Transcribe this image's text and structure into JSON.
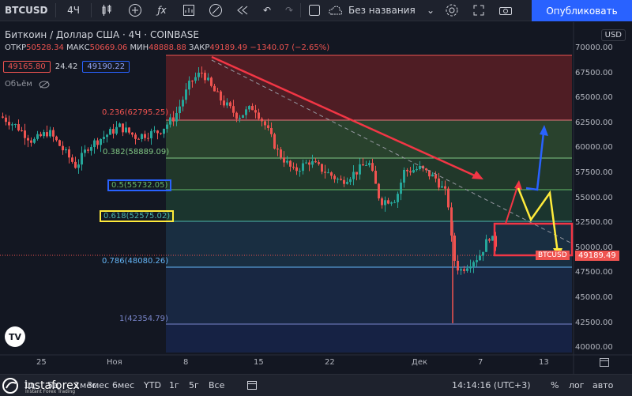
{
  "toolbar": {
    "symbol": "BTCUSD",
    "interval": "4Ч",
    "layout_name": "Без названия",
    "publish_label": "Опубликовать",
    "icons": [
      "candles-icon",
      "add-indicator-icon",
      "fx-icon",
      "templates-icon",
      "compare-icon",
      "replay-icon",
      "undo-icon",
      "redo-icon",
      "layout-icon",
      "cloud-icon",
      "settings-icon",
      "fullscreen-icon",
      "camera-icon"
    ]
  },
  "legend": {
    "title": "Биткоин / Доллар США · 4Ч · COINBASE",
    "open_label": "ОТКР",
    "open": "50528.34",
    "high_label": "МАКС",
    "high": "50669.06",
    "low_label": "МИН",
    "low": "48888.88",
    "close_label": "ЗАКР",
    "close": "49189.49",
    "change": "−1340.07 (−2.65%)",
    "sell": "49165.80",
    "spread": "24.42",
    "buy": "49190.22",
    "volume_label": "Объём"
  },
  "fib": {
    "l0236": "0.236(62795.25)",
    "l0382": "0.382(58889.09)",
    "l05": "0.5(55732.05)",
    "l0618": "0.618(52575.02)",
    "l0786": "0.786(48080.26)",
    "l1": "1(42354.79)"
  },
  "price_axis": {
    "currency": "USD",
    "labels": [
      "70000.00",
      "67500.00",
      "65000.00",
      "62500.00",
      "60000.00",
      "57500.00",
      "55000.00",
      "52500.00",
      "50000.00",
      "47500.00",
      "45000.00",
      "42500.00",
      "40000.00"
    ],
    "current": "49189.49",
    "symbol_tag": "BTCUSD"
  },
  "time_axis": {
    "labels": [
      "25",
      "Ноя",
      "8",
      "15",
      "22",
      "Дек",
      "7",
      "13"
    ]
  },
  "bottom": {
    "ranges": [
      "1д",
      "5д",
      "1мес",
      "3мес",
      "6мес",
      "YTD",
      "1г",
      "5г",
      "Все"
    ],
    "time": "14:14:16 (UTC+3)",
    "percent": "%",
    "log": "лог",
    "auto": "авто"
  },
  "watermark": {
    "brand": "instaforex",
    "tagline": "Instant Forex Trading"
  },
  "colors": {
    "up": "#26a69a",
    "down": "#ef5350",
    "accent": "#2962ff"
  }
}
